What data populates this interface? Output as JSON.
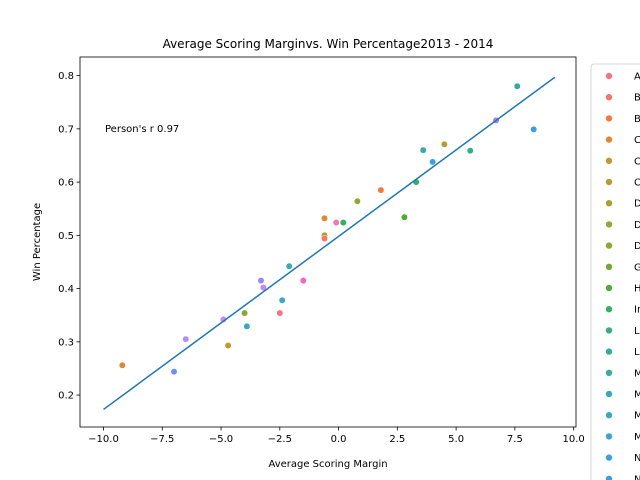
{
  "chart_data": {
    "type": "scatter",
    "title": "Average Scoring Marginvs. Win Percentage2013 - 2014",
    "xlabel": "Average Scoring Margin",
    "ylabel": "Win Percentage",
    "xlim": [
      -11.0,
      10.1
    ],
    "ylim": [
      0.14,
      0.835
    ],
    "x_ticks": [
      -10.0,
      -7.5,
      -5.0,
      -2.5,
      0.0,
      2.5,
      5.0,
      7.5,
      10.0
    ],
    "x_tick_labels": [
      "−10.0",
      "−7.5",
      "−5.0",
      "−2.5",
      "0.0",
      "2.5",
      "5.0",
      "7.5",
      "10.0"
    ],
    "y_ticks": [
      0.2,
      0.3,
      0.4,
      0.5,
      0.6,
      0.7,
      0.8
    ],
    "y_tick_labels": [
      "0.2",
      "0.3",
      "0.4",
      "0.5",
      "0.6",
      "0.7",
      "0.8"
    ],
    "grid": false,
    "annotation": "Person's r 0.97",
    "regression_line": {
      "x": [
        -10.0,
        9.2
      ],
      "y": [
        0.173,
        0.797
      ],
      "color": "#1f77b4"
    },
    "legend": {
      "placement": "right-outside",
      "entries": [
        {
          "label": "A",
          "color": "#f77189"
        },
        {
          "label": "B",
          "color": "#f67566"
        },
        {
          "label": "B",
          "color": "#f17b3a"
        },
        {
          "label": "C",
          "color": "#dc8932"
        },
        {
          "label": "C",
          "color": "#c99532"
        },
        {
          "label": "C",
          "color": "#b89b32"
        },
        {
          "label": "D",
          "color": "#a8a032"
        },
        {
          "label": "D",
          "color": "#99a532"
        },
        {
          "label": "D",
          "color": "#8aa832"
        },
        {
          "label": "G",
          "color": "#6ead32"
        },
        {
          "label": "H",
          "color": "#4aae34"
        },
        {
          "label": "In",
          "color": "#33b065"
        },
        {
          "label": "L",
          "color": "#34ae85"
        },
        {
          "label": "L",
          "color": "#35ad96"
        },
        {
          "label": "M",
          "color": "#36ada4"
        },
        {
          "label": "M",
          "color": "#37abb0"
        },
        {
          "label": "M",
          "color": "#38aabd"
        },
        {
          "label": "M",
          "color": "#39a7ca"
        },
        {
          "label": "N",
          "color": "#3ba3d7"
        },
        {
          "label": "N",
          "color": "#3d9ee8"
        }
      ]
    },
    "points": [
      {
        "x": -9.2,
        "y": 0.256,
        "color": "#dc8932"
      },
      {
        "x": -7.0,
        "y": 0.244,
        "color": "#6f8ff2"
      },
      {
        "x": -6.5,
        "y": 0.305,
        "color": "#b38ff4"
      },
      {
        "x": -4.9,
        "y": 0.342,
        "color": "#c68bf4"
      },
      {
        "x": -4.7,
        "y": 0.293,
        "color": "#c99532"
      },
      {
        "x": -4.0,
        "y": 0.354,
        "color": "#8aa832"
      },
      {
        "x": -3.9,
        "y": 0.329,
        "color": "#39a7ca"
      },
      {
        "x": -3.3,
        "y": 0.415,
        "color": "#9a89f4"
      },
      {
        "x": -3.2,
        "y": 0.402,
        "color": "#c08bf4"
      },
      {
        "x": -2.5,
        "y": 0.354,
        "color": "#f77189"
      },
      {
        "x": -2.4,
        "y": 0.378,
        "color": "#38aabd"
      },
      {
        "x": -2.1,
        "y": 0.442,
        "color": "#37abb0"
      },
      {
        "x": -1.5,
        "y": 0.415,
        "color": "#f565c8"
      },
      {
        "x": -0.6,
        "y": 0.532,
        "color": "#dc8932"
      },
      {
        "x": -0.6,
        "y": 0.5,
        "color": "#b89b32"
      },
      {
        "x": -0.6,
        "y": 0.494,
        "color": "#f67566"
      },
      {
        "x": -0.1,
        "y": 0.524,
        "color": "#f27ab0"
      },
      {
        "x": 0.2,
        "y": 0.524,
        "color": "#33b065"
      },
      {
        "x": 0.8,
        "y": 0.564,
        "color": "#8aa832"
      },
      {
        "x": 1.8,
        "y": 0.585,
        "color": "#f17b3a"
      },
      {
        "x": 2.8,
        "y": 0.534,
        "color": "#4aae34"
      },
      {
        "x": 3.3,
        "y": 0.6,
        "color": "#33b065"
      },
      {
        "x": 3.6,
        "y": 0.66,
        "color": "#36ada4"
      },
      {
        "x": 4.0,
        "y": 0.638,
        "color": "#3ba3d7"
      },
      {
        "x": 4.5,
        "y": 0.671,
        "color": "#b89b32"
      },
      {
        "x": 5.6,
        "y": 0.659,
        "color": "#34ae85"
      },
      {
        "x": 6.7,
        "y": 0.716,
        "color": "#ad7cf4"
      },
      {
        "x": 7.6,
        "y": 0.78,
        "color": "#35ad96"
      },
      {
        "x": 8.3,
        "y": 0.699,
        "color": "#3d9ee8"
      }
    ]
  }
}
